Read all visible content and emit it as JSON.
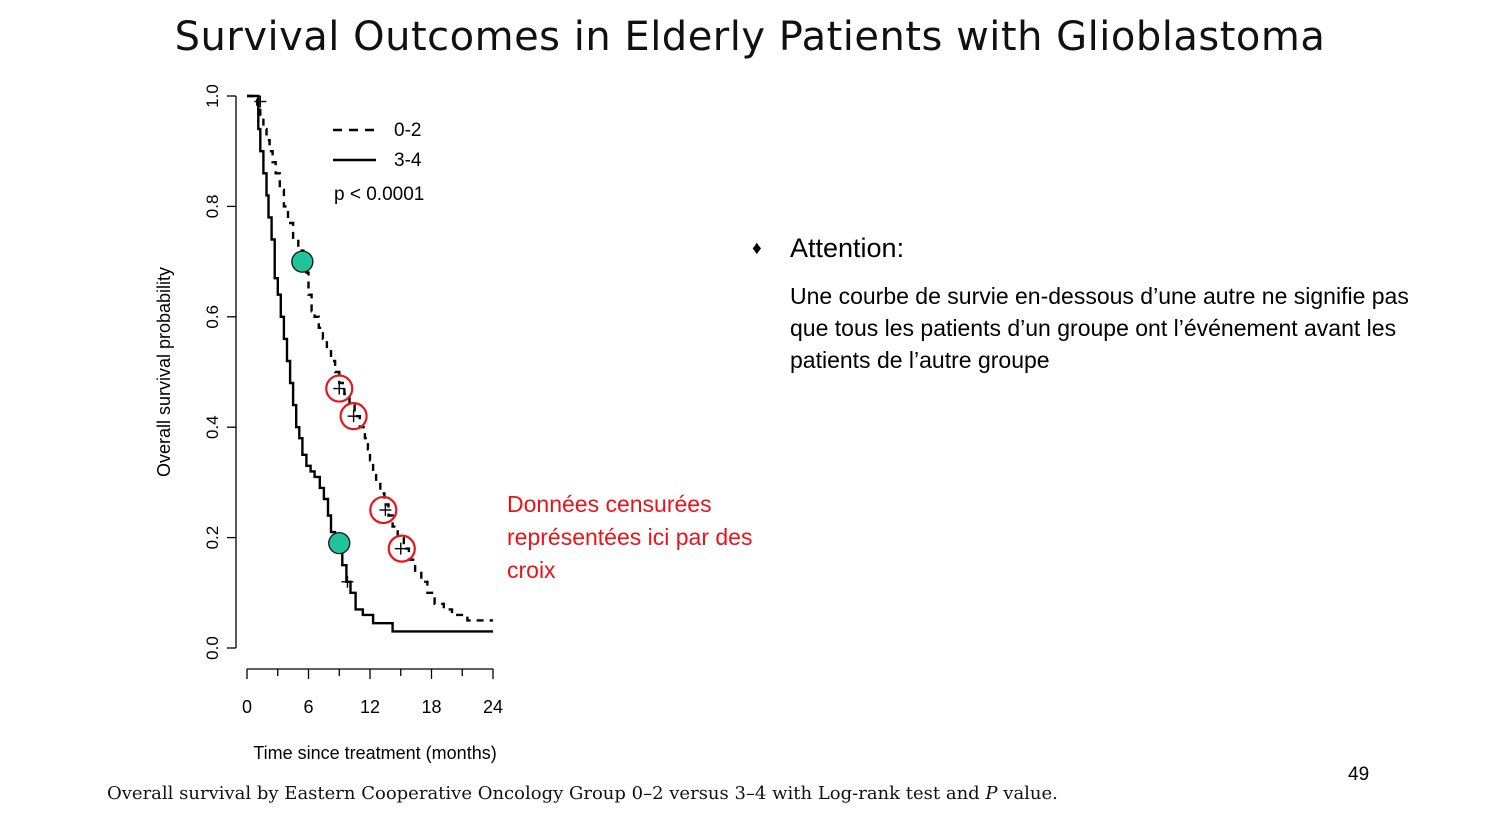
{
  "slide": {
    "title": "Survival Outcomes in Elderly Patients with Glioblastoma",
    "page_number": "49",
    "caption": "Overall survival by Eastern Cooperative Oncology Group 0–2 versus 3–4 with Log-rank test and P value."
  },
  "callout": {
    "bullet": "♦",
    "heading": "Attention:",
    "body": "Une courbe de survie en-dessous d’une autre ne signifie pas que tous les patients d’un groupe ont l’événement avant les patients de l’autre groupe"
  },
  "censor_note": "Données censurées représentées ici par des croix",
  "colors": {
    "title": "#111111",
    "annotation_red": "#e8141b",
    "marker_green": "#1fc49a",
    "curve": "#000000"
  },
  "chart_data": {
    "type": "line",
    "subtype": "kaplan-meier step survival curves",
    "xlabel": "Time since treatment (months)",
    "ylabel": "Overall survival probability",
    "xlim": [
      0,
      24
    ],
    "ylim": [
      0,
      1
    ],
    "x_ticks": [
      0,
      6,
      12,
      18,
      24
    ],
    "x_tick_labels": [
      "0",
      "6",
      "12",
      "18",
      "24"
    ],
    "y_ticks": [
      0,
      0.2,
      0.4,
      0.6,
      0.8,
      1.0
    ],
    "y_tick_labels": [
      "0.0",
      "0.2",
      "0.4",
      "0.6",
      "0.8",
      "1.0"
    ],
    "legend_position": "top-right",
    "annotation": "p < 0.0001",
    "series": [
      {
        "name": "0-2",
        "line_style": "dashed",
        "points": [
          [
            0,
            1.0
          ],
          [
            0.8,
            1.0
          ],
          [
            1.0,
            0.98
          ],
          [
            1.3,
            0.96
          ],
          [
            1.6,
            0.94
          ],
          [
            1.9,
            0.92
          ],
          [
            2.2,
            0.9
          ],
          [
            2.5,
            0.88
          ],
          [
            2.8,
            0.86
          ],
          [
            3.2,
            0.83
          ],
          [
            3.6,
            0.8
          ],
          [
            4.0,
            0.77
          ],
          [
            4.5,
            0.74
          ],
          [
            5.0,
            0.72
          ],
          [
            5.5,
            0.7
          ],
          [
            5.8,
            0.68
          ],
          [
            6.0,
            0.64
          ],
          [
            6.3,
            0.61
          ],
          [
            6.6,
            0.6
          ],
          [
            7.0,
            0.58
          ],
          [
            7.4,
            0.56
          ],
          [
            7.8,
            0.54
          ],
          [
            8.2,
            0.52
          ],
          [
            8.6,
            0.5
          ],
          [
            9.0,
            0.48
          ],
          [
            9.5,
            0.46
          ],
          [
            10.0,
            0.44
          ],
          [
            10.5,
            0.42
          ],
          [
            11.0,
            0.4
          ],
          [
            11.5,
            0.38
          ],
          [
            11.8,
            0.36
          ],
          [
            12.0,
            0.34
          ],
          [
            12.3,
            0.32
          ],
          [
            12.6,
            0.3
          ],
          [
            13.0,
            0.28
          ],
          [
            13.4,
            0.26
          ],
          [
            13.8,
            0.24
          ],
          [
            14.2,
            0.22
          ],
          [
            14.7,
            0.2
          ],
          [
            15.3,
            0.18
          ],
          [
            15.8,
            0.16
          ],
          [
            16.4,
            0.14
          ],
          [
            17.0,
            0.12
          ],
          [
            17.6,
            0.1
          ],
          [
            18.3,
            0.08
          ],
          [
            19.2,
            0.07
          ],
          [
            20.0,
            0.06
          ],
          [
            21.5,
            0.05
          ],
          [
            24.0,
            0.05
          ]
        ],
        "censored": [
          [
            9.0,
            0.47
          ],
          [
            10.4,
            0.42
          ],
          [
            13.5,
            0.25
          ],
          [
            15.0,
            0.18
          ]
        ]
      },
      {
        "name": "3-4",
        "line_style": "solid",
        "points": [
          [
            0,
            1.0
          ],
          [
            0.9,
            1.0
          ],
          [
            1.1,
            0.94
          ],
          [
            1.3,
            0.9
          ],
          [
            1.6,
            0.86
          ],
          [
            1.9,
            0.82
          ],
          [
            2.1,
            0.78
          ],
          [
            2.4,
            0.74
          ],
          [
            2.7,
            0.67
          ],
          [
            3.0,
            0.64
          ],
          [
            3.3,
            0.6
          ],
          [
            3.6,
            0.56
          ],
          [
            3.9,
            0.52
          ],
          [
            4.2,
            0.48
          ],
          [
            4.5,
            0.44
          ],
          [
            4.8,
            0.4
          ],
          [
            5.1,
            0.38
          ],
          [
            5.4,
            0.35
          ],
          [
            5.8,
            0.33
          ],
          [
            6.2,
            0.32
          ],
          [
            6.6,
            0.31
          ],
          [
            7.1,
            0.29
          ],
          [
            7.5,
            0.27
          ],
          [
            7.9,
            0.24
          ],
          [
            8.2,
            0.21
          ],
          [
            8.6,
            0.2
          ],
          [
            9.0,
            0.18
          ],
          [
            9.3,
            0.15
          ],
          [
            9.7,
            0.12
          ],
          [
            10.1,
            0.1
          ],
          [
            10.6,
            0.07
          ],
          [
            11.3,
            0.06
          ],
          [
            12.3,
            0.045
          ],
          [
            13.5,
            0.045
          ],
          [
            14.2,
            0.03
          ],
          [
            18.0,
            0.03
          ],
          [
            24.0,
            0.03
          ]
        ],
        "censored": [
          [
            1.3,
            0.99
          ],
          [
            9.8,
            0.12
          ]
        ]
      }
    ],
    "highlight_points": [
      {
        "x": 5.4,
        "y": 0.7
      },
      {
        "x": 9.0,
        "y": 0.19
      }
    ],
    "circled_censor_points": [
      {
        "x": 9.0,
        "y": 0.47
      },
      {
        "x": 10.4,
        "y": 0.42
      },
      {
        "x": 13.3,
        "y": 0.25
      },
      {
        "x": 15.1,
        "y": 0.18
      }
    ]
  }
}
